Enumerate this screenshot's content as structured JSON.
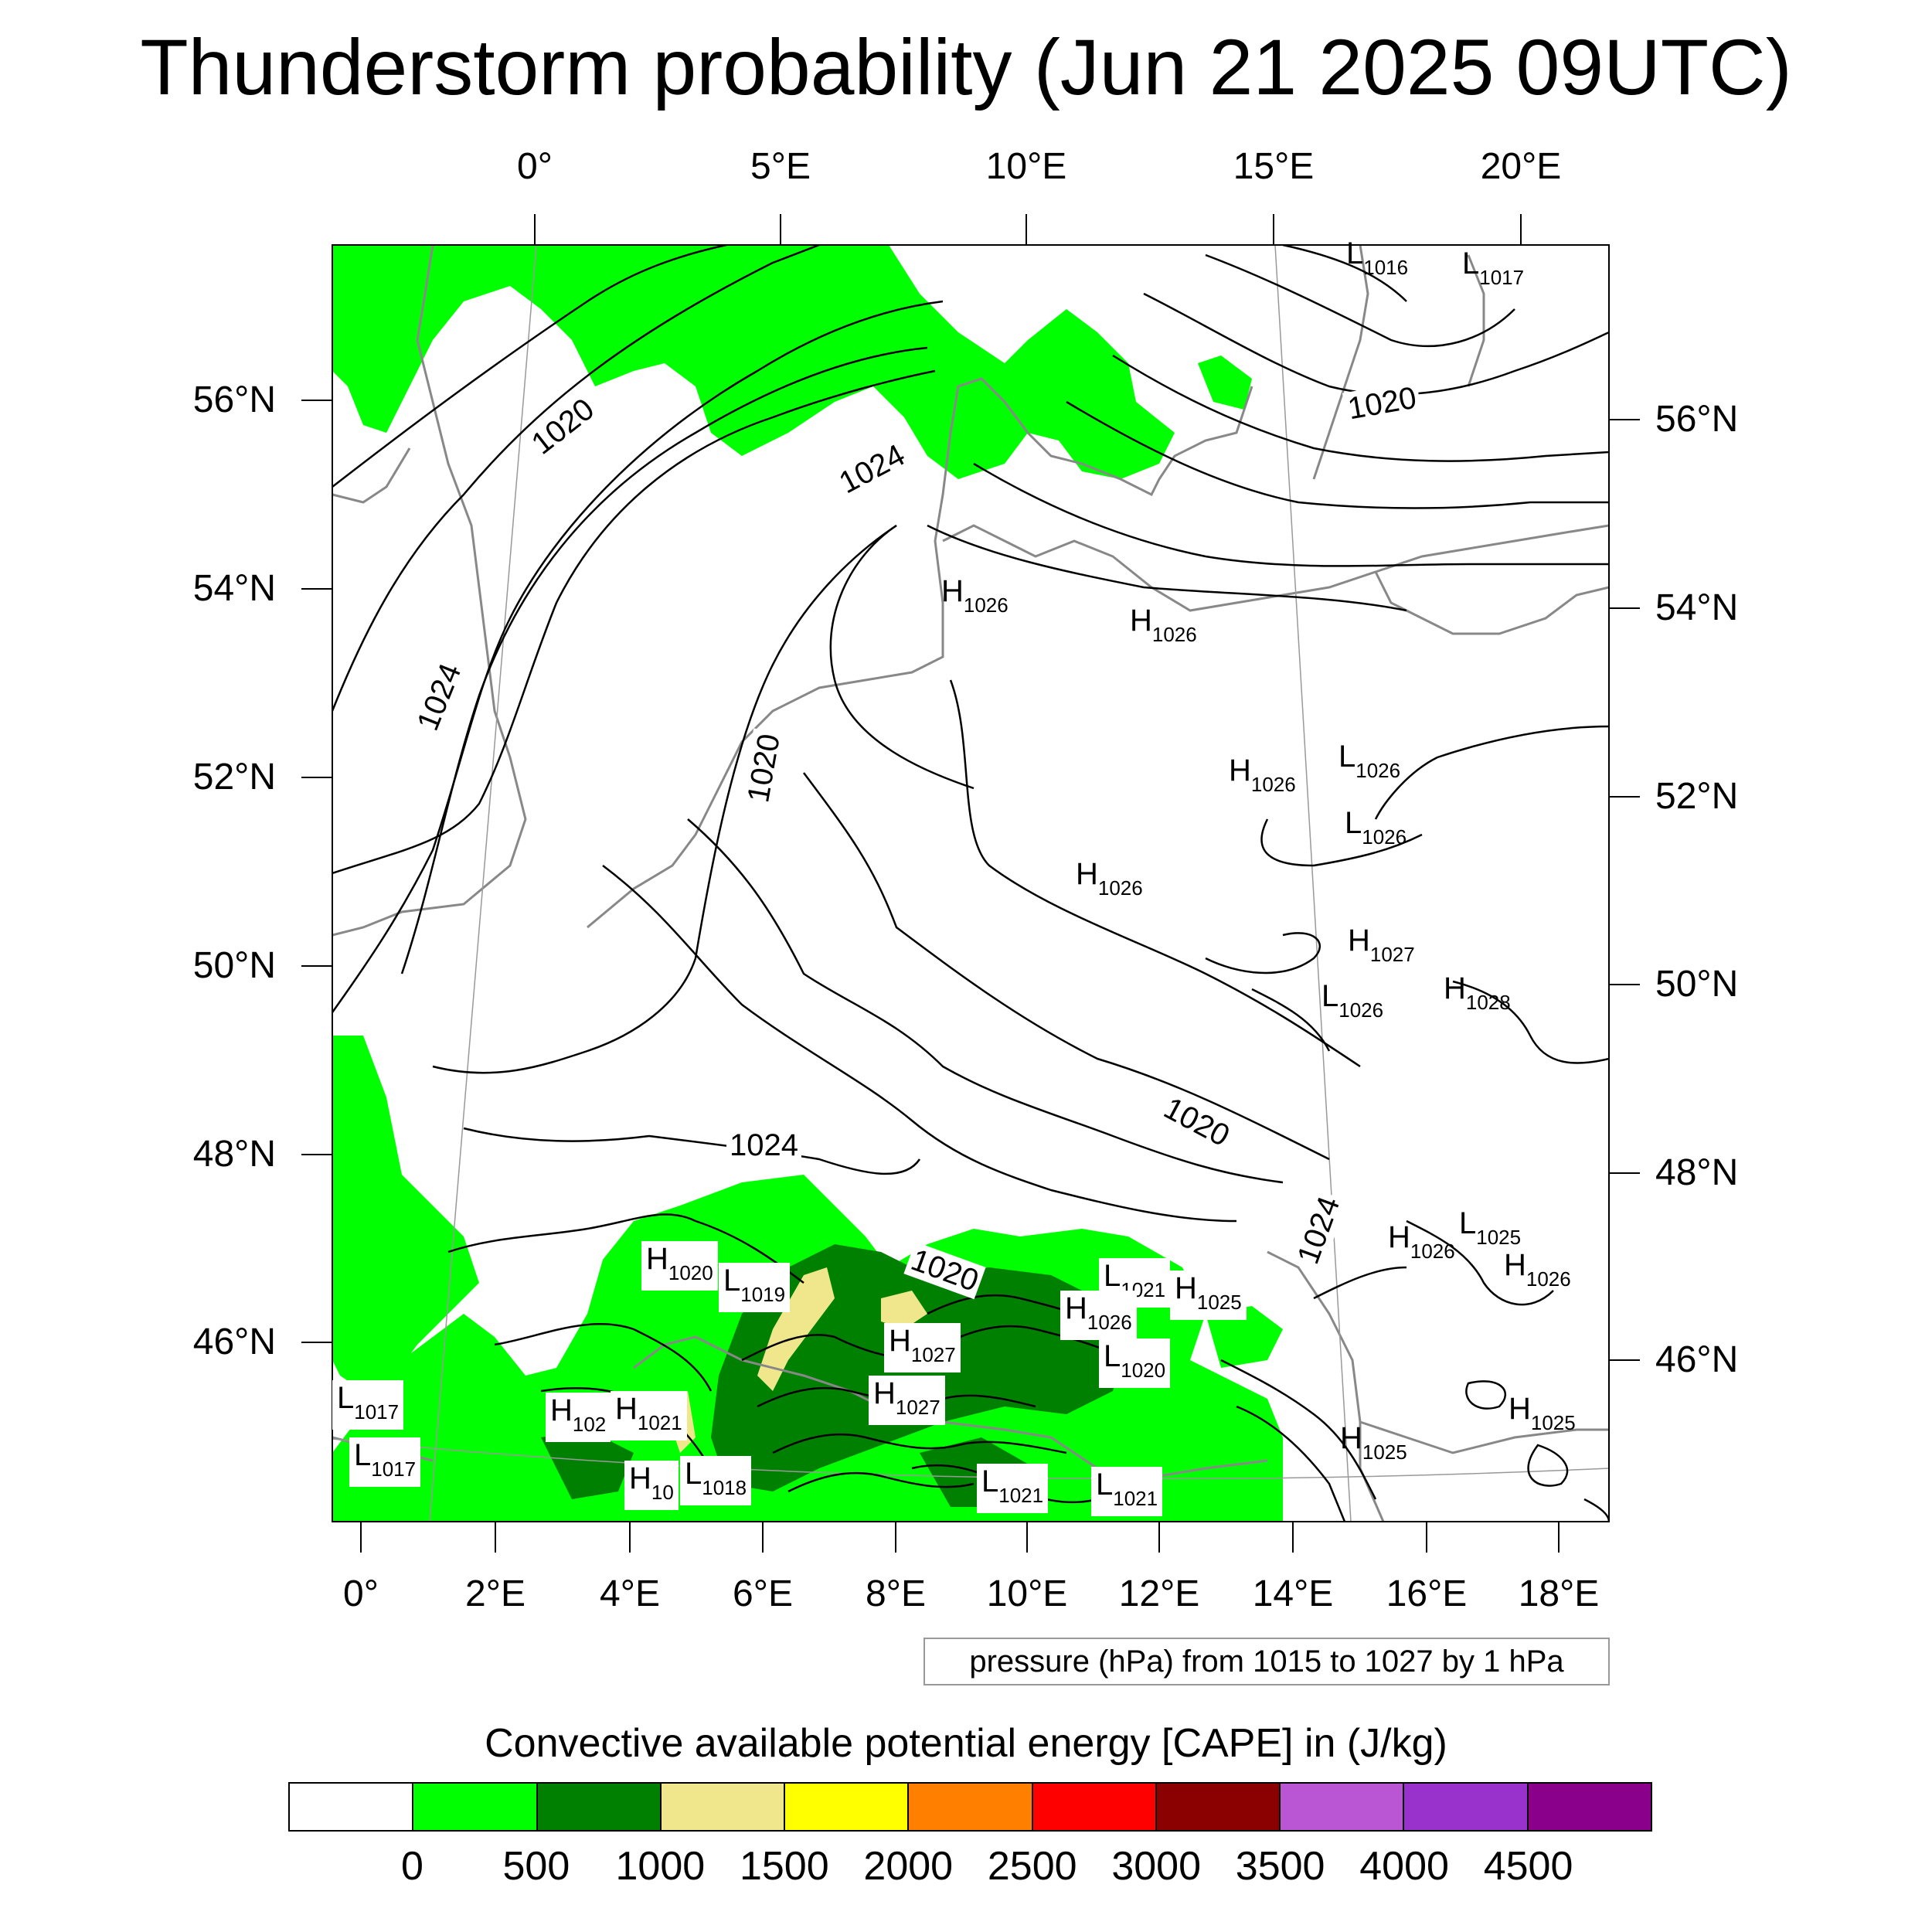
{
  "title": "Thunderstorm probability (Jun 21 2025 09UTC)",
  "top_axis_labels": [
    "0°",
    "5°E",
    "10°E",
    "15°E",
    "20°E"
  ],
  "bottom_axis_labels": [
    "0°",
    "2°E",
    "4°E",
    "6°E",
    "8°E",
    "10°E",
    "12°E",
    "14°E",
    "16°E",
    "18°E"
  ],
  "left_axis_labels": [
    "56°N",
    "54°N",
    "52°N",
    "50°N",
    "48°N",
    "46°N"
  ],
  "right_axis_labels": [
    "56°N",
    "54°N",
    "52°N",
    "50°N",
    "48°N",
    "46°N"
  ],
  "isobar_labels": [
    "1020",
    "1024",
    "1020",
    "1024",
    "1020",
    "1024",
    "1020",
    "1020",
    "1024"
  ],
  "pressure_centers": [
    {
      "type": "L",
      "value": "1016"
    },
    {
      "type": "L",
      "value": "1017"
    },
    {
      "type": "H",
      "value": "1026"
    },
    {
      "type": "H",
      "value": "1026"
    },
    {
      "type": "H",
      "value": "1026"
    },
    {
      "type": "L",
      "value": "1026"
    },
    {
      "type": "L",
      "value": "1026"
    },
    {
      "type": "H",
      "value": "1026"
    },
    {
      "type": "H",
      "value": "1027"
    },
    {
      "type": "L",
      "value": "1026"
    },
    {
      "type": "H",
      "value": "1028"
    },
    {
      "type": "H",
      "value": "1026"
    },
    {
      "type": "L",
      "value": "1025"
    },
    {
      "type": "H",
      "value": "1026"
    },
    {
      "type": "H",
      "value": "1020"
    },
    {
      "type": "L",
      "value": "1019"
    },
    {
      "type": "L",
      "value": "1021"
    },
    {
      "type": "H",
      "value": "1025"
    },
    {
      "type": "H",
      "value": "1026"
    },
    {
      "type": "H",
      "value": "1027"
    },
    {
      "type": "L",
      "value": "1020"
    },
    {
      "type": "H",
      "value": "1027"
    },
    {
      "type": "L",
      "value": "1017"
    },
    {
      "type": "H",
      "value": "102"
    },
    {
      "type": "H",
      "value": "1021"
    },
    {
      "type": "L",
      "value": "1017"
    },
    {
      "type": "H",
      "value": "10"
    },
    {
      "type": "L",
      "value": "1018"
    },
    {
      "type": "L",
      "value": "1021"
    },
    {
      "type": "L",
      "value": "1021"
    },
    {
      "type": "H",
      "value": "1025"
    },
    {
      "type": "H",
      "value": "1025"
    }
  ],
  "pressure_note": "pressure (hPa) from 1015 to 1027 by 1 hPa",
  "cape_title": "Convective available potential energy [CAPE] in (J/kg)",
  "colorbar": {
    "colors": [
      "#ffffff",
      "#00ff00",
      "#008000",
      "#f0e68c",
      "#ffff00",
      "#ff8000",
      "#ff0000",
      "#8b0000",
      "#ba55d3",
      "#9932cc",
      "#8b008b"
    ],
    "labels": [
      "0",
      "500",
      "1000",
      "1500",
      "2000",
      "2500",
      "3000",
      "3500",
      "4000",
      "4500"
    ]
  },
  "colors": {
    "cape_low": "#00ff00",
    "cape_mid": "#008000",
    "cape_high": "#f0e68c",
    "coast": "#888888",
    "isobar": "#000000"
  }
}
